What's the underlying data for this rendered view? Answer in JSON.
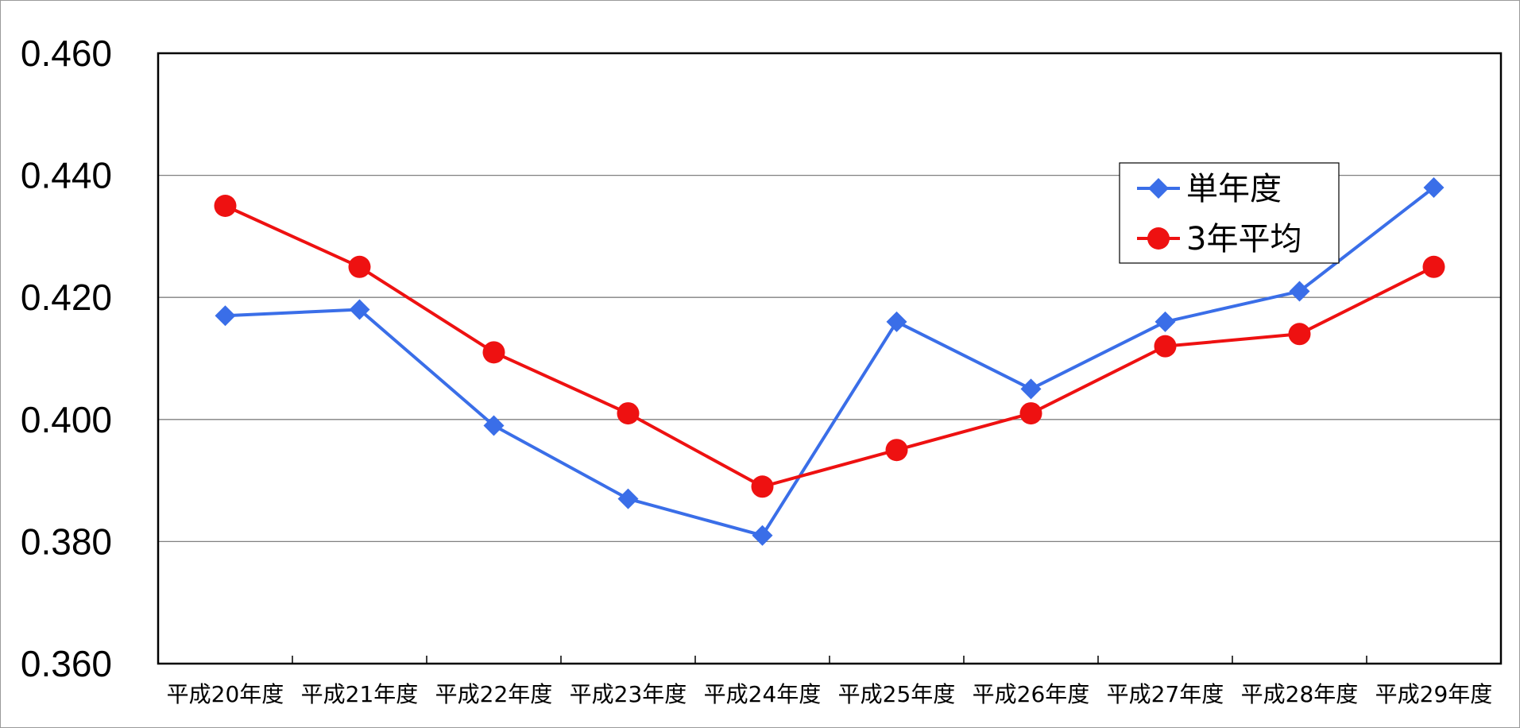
{
  "chart_data": {
    "type": "line",
    "title": "",
    "xlabel": "",
    "ylabel": "",
    "categories": [
      "平成20年度",
      "平成21年度",
      "平成22年度",
      "平成23年度",
      "平成24年度",
      "平成25年度",
      "平成26年度",
      "平成27年度",
      "平成28年度",
      "平成29年度"
    ],
    "ylim": [
      0.36,
      0.46
    ],
    "yticks": [
      "0.360",
      "0.380",
      "0.400",
      "0.420",
      "0.440",
      "0.460"
    ],
    "grid": true,
    "legend_position": "top-right",
    "series": [
      {
        "name": "単年度",
        "marker": "diamond",
        "color": "#3a6ee8",
        "values": [
          0.417,
          0.418,
          0.399,
          0.387,
          0.381,
          0.416,
          0.405,
          0.416,
          0.421,
          0.438
        ]
      },
      {
        "name": "3年平均",
        "marker": "circle",
        "color": "#ee1111",
        "values": [
          0.435,
          0.425,
          0.411,
          0.401,
          0.389,
          0.395,
          0.401,
          0.412,
          0.414,
          0.425
        ]
      }
    ]
  }
}
